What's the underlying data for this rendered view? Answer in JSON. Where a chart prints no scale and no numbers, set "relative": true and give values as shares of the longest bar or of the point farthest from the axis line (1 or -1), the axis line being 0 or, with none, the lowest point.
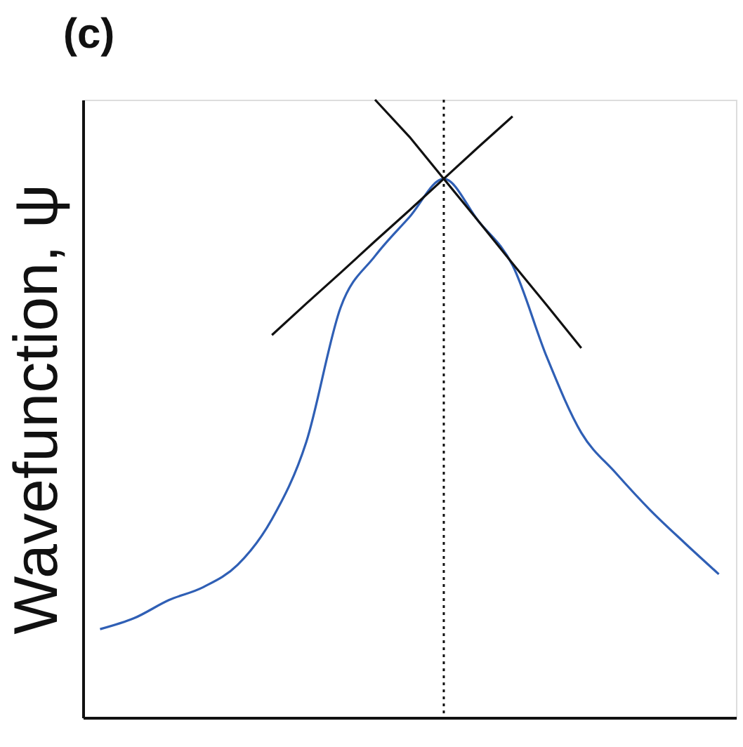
{
  "chart_data": {
    "type": "line",
    "title": "(c)",
    "ylabel": "Wavefunction, ψ",
    "relative": true,
    "grid": false,
    "marker": "none",
    "categories": [
      null,
      null,
      null,
      null,
      null,
      null,
      null,
      null,
      null,
      null,
      null,
      null,
      null,
      null,
      null,
      null,
      null,
      null,
      null
    ],
    "series": [
      {
        "color": "#2f5fb5",
        "line_style": "solid",
        "values": [
          0.143,
          0.161,
          0.19,
          0.211,
          0.247,
          0.321,
          0.446,
          0.664,
          0.747,
          0.81,
          0.872,
          0.804,
          0.732,
          0.583,
          0.461,
          0.396,
          0.336,
          0.283,
          0.232
        ]
      },
      {
        "color": "#111111",
        "line_style": "solid",
        "values": [
          null,
          null,
          null,
          null,
          null,
          0.619,
          0.67,
          0.72,
          0.771,
          0.821,
          0.872,
          0.923,
          0.973,
          null,
          null,
          null,
          null,
          null,
          null
        ]
      },
      {
        "color": "#111111",
        "line_style": "solid",
        "values": [
          null,
          null,
          null,
          null,
          null,
          null,
          null,
          null,
          1.0,
          0.94,
          0.872,
          0.804,
          0.735,
          0.667,
          0.598,
          null,
          null,
          null,
          null
        ]
      }
    ]
  }
}
